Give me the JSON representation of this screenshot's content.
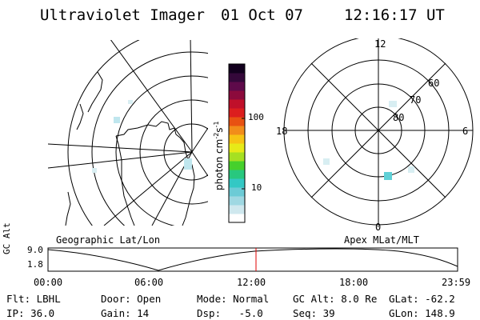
{
  "header": {
    "title": "Ultraviolet Imager",
    "date": "01 Oct 07",
    "time": "12:16:17 UT"
  },
  "colorbar": {
    "unit_label": "photon cm",
    "ticks": [
      "100",
      "10"
    ],
    "colors": [
      "#ffffff",
      "#cfe8ee",
      "#9fd8e2",
      "#6ccbd6",
      "#33c8c4",
      "#28c87e",
      "#46d02c",
      "#a6e022",
      "#e7ea18",
      "#f7c414",
      "#f28d1a",
      "#e85212",
      "#dc1e1e",
      "#c0102a",
      "#8c0a3c",
      "#5e0a4a",
      "#34083a",
      "#12001e"
    ]
  },
  "geo_panel": {
    "label": "Geographic Lat/Lon"
  },
  "polar_panel": {
    "label": "Apex MLat/MLT",
    "mlt_labels": {
      "top": "12",
      "left": "18",
      "right": "6",
      "bottom": "0"
    },
    "lat_labels": [
      "60",
      "70",
      "80"
    ]
  },
  "altitude_plot": {
    "ylabel": "GC Alt",
    "ytick_top": "9.0",
    "ytick_bottom": "1.8",
    "xticks": [
      "00:00",
      "06:00",
      "12:00",
      "18:00",
      "23:59"
    ],
    "current_time_color": "#e00000"
  },
  "info": {
    "flt": "Flt: LBHL",
    "ip": "IP: 36.0",
    "door": "Door: Open",
    "gain": "Gain: 14",
    "mode": "Mode: Normal",
    "dsp": "Dsp:   -5.0",
    "gcalt": "GC Alt: 8.0 Re",
    "seq": "Seq: 39",
    "glat": "GLat: -62.2",
    "glon": "GLon: 148.9"
  }
}
